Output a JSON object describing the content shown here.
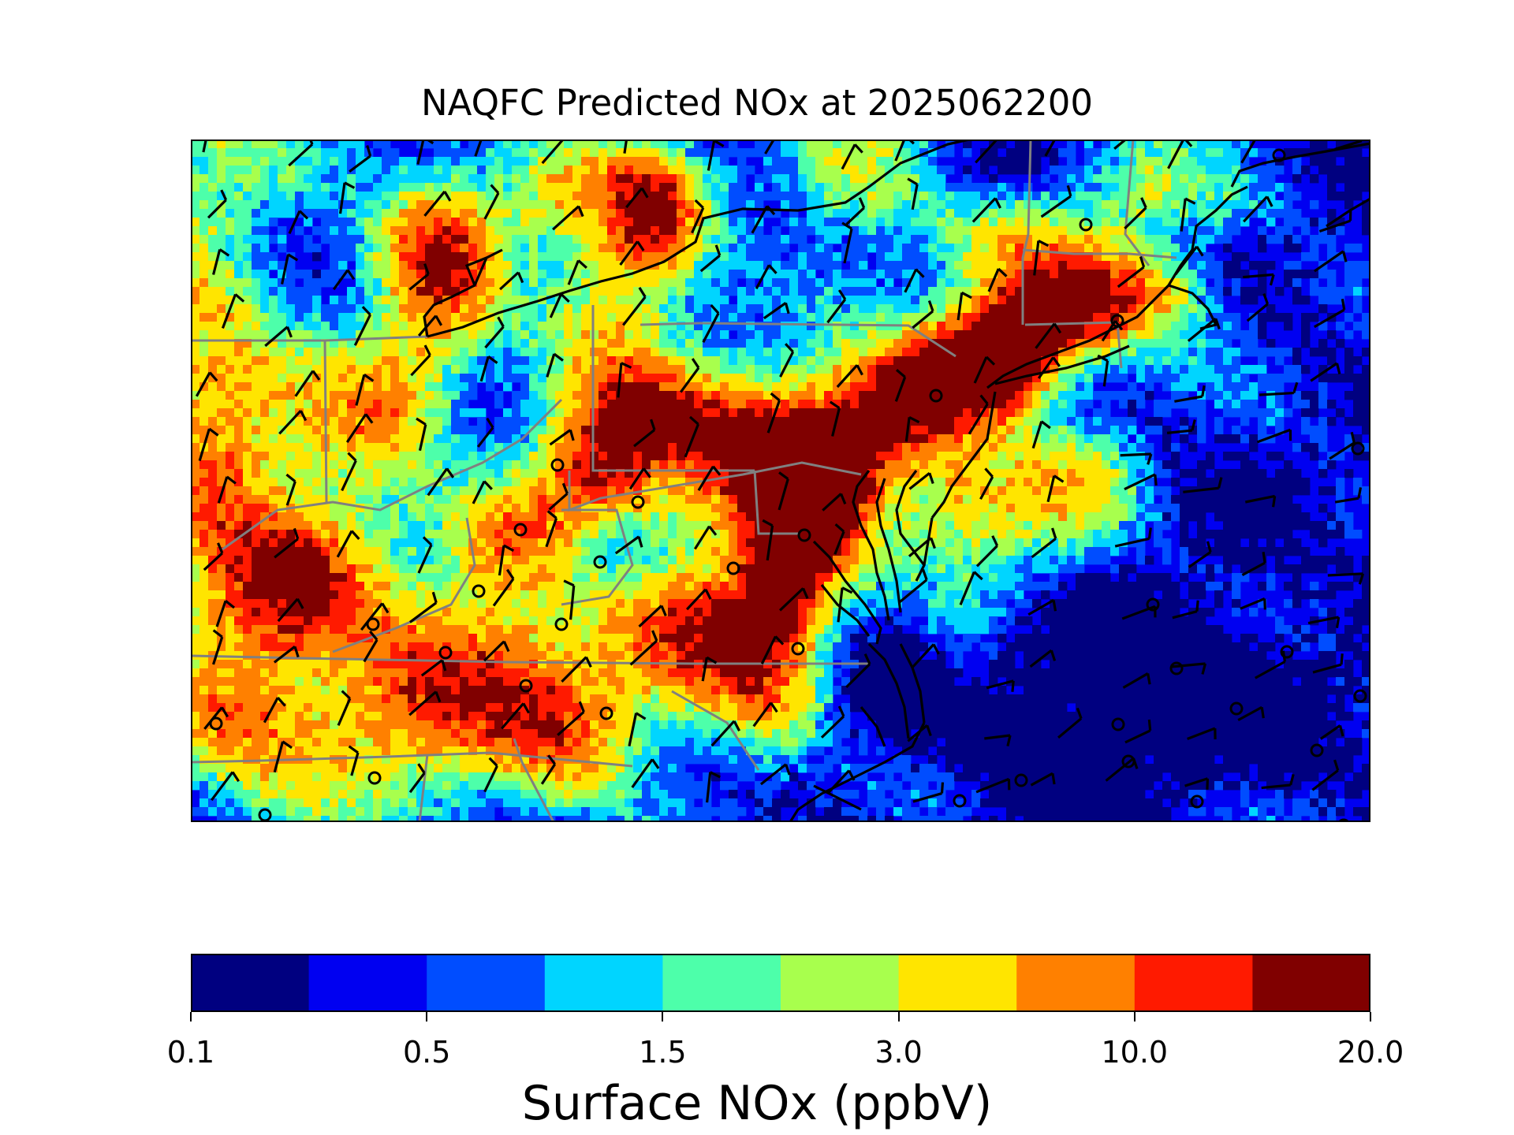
{
  "title": "NAQFC Predicted NOx at 2025062200",
  "colorbar": {
    "label": "Surface NOx (ppbV)",
    "colors": [
      "#000080",
      "#0000f1",
      "#004dff",
      "#00d5ff",
      "#4dffaa",
      "#a8ff4d",
      "#ffe500",
      "#ff8000",
      "#ff1a00",
      "#800000"
    ],
    "ticks": [
      {
        "label": "0.1",
        "index": 0
      },
      {
        "label": "0.5",
        "index": 2
      },
      {
        "label": "1.5",
        "index": 4
      },
      {
        "label": "3.0",
        "index": 6
      },
      {
        "label": "10.0",
        "index": 8
      },
      {
        "label": "20.0",
        "index": 10
      }
    ]
  },
  "map": {
    "region": "Northeastern United States and Mid-Atlantic",
    "background_color": "#0000f1",
    "coastline_color": "#000000",
    "state_border_color": "#808080",
    "station_marker": "open circle",
    "wind_symbol": "wind barb"
  }
}
